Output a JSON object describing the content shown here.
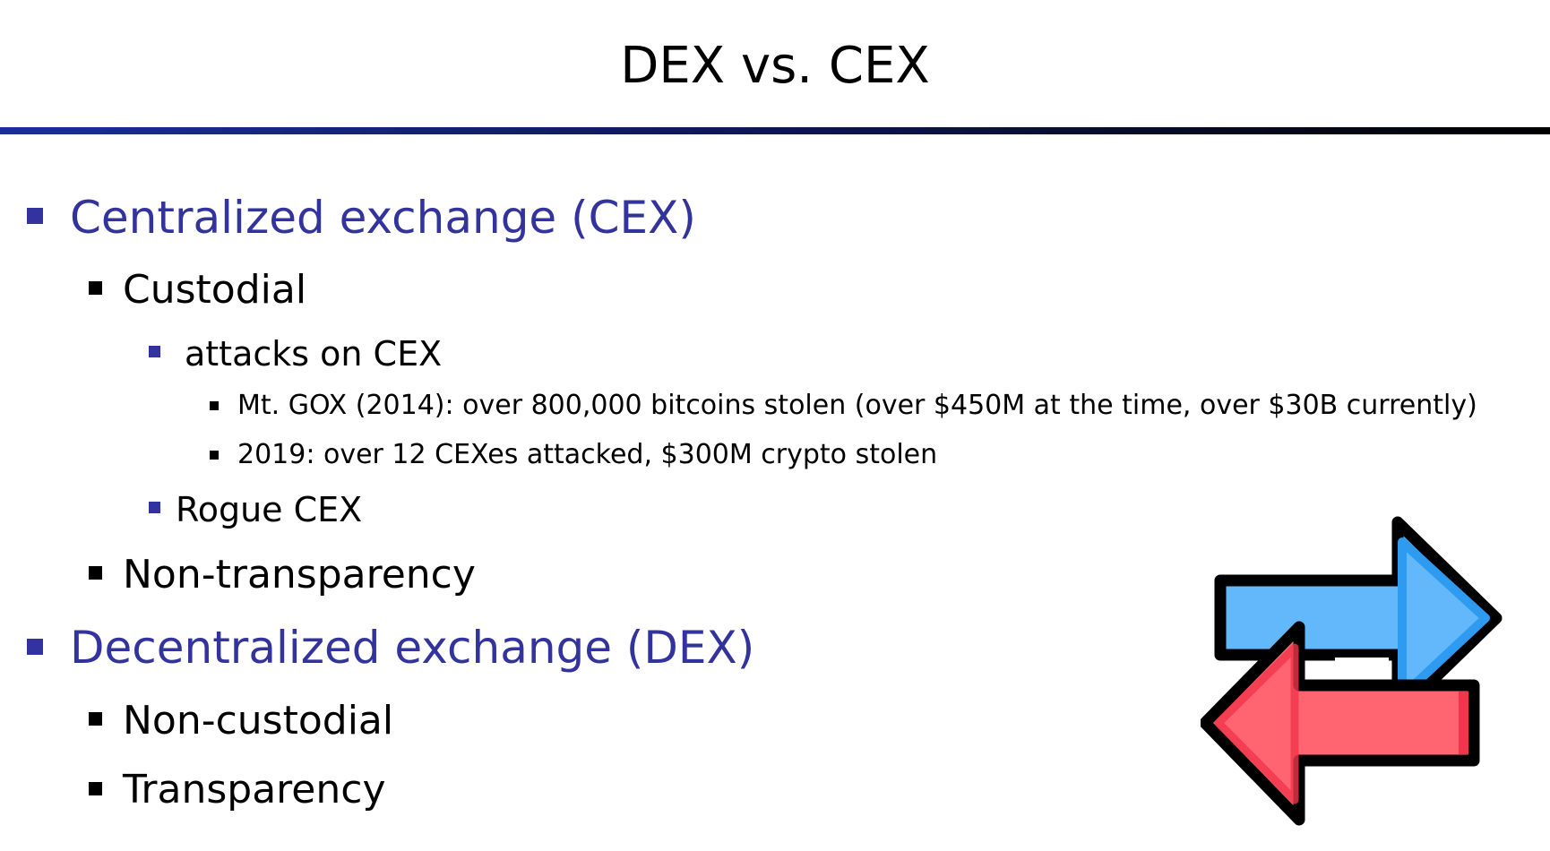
{
  "slide": {
    "title": "DEX vs. CEX"
  },
  "colors": {
    "title_rule_start": "#1a2ea0",
    "title_rule_end": "#000000",
    "level1_text": "#33339e",
    "arrow_blue": "#62b8fb",
    "arrow_blue_shade": "#2e9bf0",
    "arrow_red": "#ff6470",
    "arrow_red_shade": "#f0364a"
  },
  "bullets": {
    "cex": {
      "label": "Centralized exchange (CEX)",
      "custodial": {
        "label": "Custodial",
        "attacks": {
          "label": "attacks on CEX",
          "mtgox": "Mt. GOX (2014): over 800,000 bitcoins stolen (over $450M at the time, over $30B currently)",
          "year2019": "2019: over 12 CEXes attacked, $300M crypto stolen"
        },
        "rogue": "Rogue CEX"
      },
      "non_transparency": "Non-transparency"
    },
    "dex": {
      "label": "Decentralized exchange (DEX)",
      "non_custodial": "Non-custodial",
      "transparency": "Transparency"
    }
  },
  "icon": {
    "name": "exchange-arrows-icon"
  }
}
